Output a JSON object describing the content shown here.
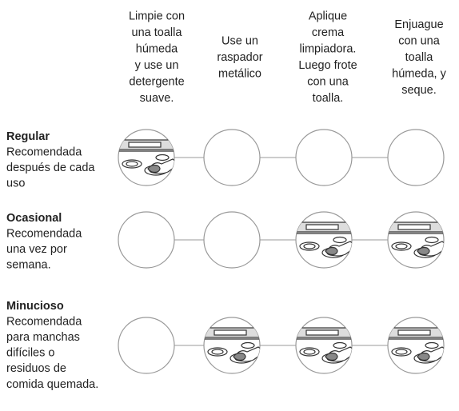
{
  "columns": [
    {
      "lines": [
        "Limpie con",
        "una toalla",
        "húmeda",
        "y use un",
        "detergente",
        "suave."
      ]
    },
    {
      "lines": [
        "Use un",
        "raspador",
        "metálico"
      ]
    },
    {
      "lines": [
        "Aplique",
        "crema",
        "limpiadora.",
        "Luego frote",
        "con una",
        "toalla."
      ]
    },
    {
      "lines": [
        "Enjuague",
        "con una",
        "toalla",
        "húmeda, y",
        "seque."
      ]
    }
  ],
  "rows": [
    {
      "title": "Regular",
      "lines": [
        "Recomendada",
        "después de cada",
        "uso"
      ]
    },
    {
      "title": "Ocasional",
      "lines": [
        "Recomendada",
        "una vez por",
        "semana."
      ]
    },
    {
      "title": "Minucioso",
      "lines": [
        "Recomendada",
        "para manchas",
        "difíciles o",
        "residuos de",
        "comida quemada."
      ]
    }
  ]
}
